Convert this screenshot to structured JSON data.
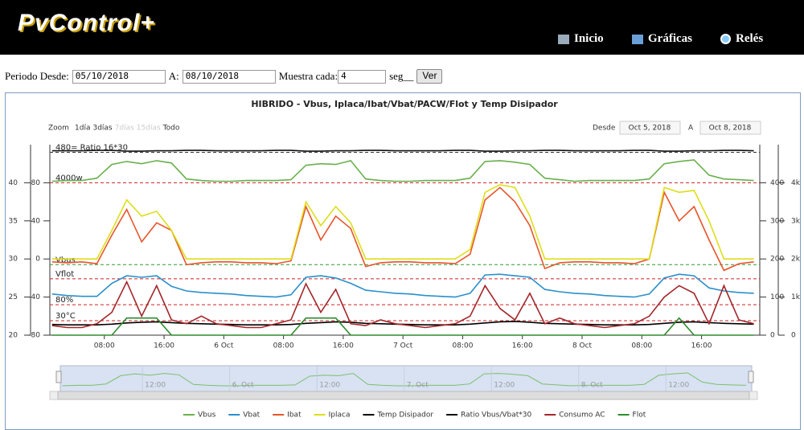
{
  "header": {
    "logo": "PvControl+",
    "nav": [
      "Inicio",
      "Gráficas",
      "Relés"
    ]
  },
  "form": {
    "desde_label": "Periodo Desde:",
    "desde": "05/10/2018",
    "a_label": "A:",
    "a": "08/10/2018",
    "muestra_label": "Muestra cada:",
    "muestra": "4",
    "seg": "seg__",
    "button": "Ver"
  },
  "chart_data": {
    "type": "line",
    "title": "HIBRIDO - Vbus, Iplaca/Ibat/Vbat/PACW/Flot y Temp Disipador",
    "range_selector": {
      "label": "Zoom",
      "buttons": [
        "1día",
        "3días",
        "7días",
        "15días",
        "Todo"
      ],
      "enabled": [
        true,
        true,
        false,
        false,
        true
      ],
      "from_label": "Desde",
      "from": "Oct 5, 2018",
      "to_label": "A",
      "to": "Oct 8, 2018"
    },
    "x": [
      1,
      3,
      5,
      7,
      9,
      11,
      13,
      15,
      17,
      19,
      21,
      23,
      25,
      27,
      29,
      31,
      33,
      35,
      37,
      39,
      41,
      43,
      45,
      47,
      49,
      51,
      53,
      55,
      57,
      59,
      61,
      63,
      65,
      67,
      69,
      71,
      73,
      75,
      77,
      79,
      81,
      83,
      85,
      87,
      89,
      91,
      93,
      95
    ],
    "xlim": [
      0.7,
      95.8
    ],
    "xticks": [
      {
        "value": 8,
        "label": "08:00"
      },
      {
        "value": 16,
        "label": "16:00"
      },
      {
        "value": 24,
        "label": "6 Oct"
      },
      {
        "value": 32,
        "label": "08:00"
      },
      {
        "value": 40,
        "label": "16:00"
      },
      {
        "value": 48,
        "label": "7 Oct"
      },
      {
        "value": 56,
        "label": "08:00"
      },
      {
        "value": 64,
        "label": "16:00"
      },
      {
        "value": 72,
        "label": "8 Oct"
      },
      {
        "value": 80,
        "label": "08:00"
      },
      {
        "value": 88,
        "label": "16:00"
      }
    ],
    "ylim": [
      20,
      45
    ],
    "yticks": [
      20,
      25,
      30,
      35,
      40
    ],
    "y2lim": [
      -80,
      120
    ],
    "y2ticks": [
      -80,
      -40,
      0,
      40,
      80
    ],
    "y3lim": [
      0,
      500
    ],
    "y3ticks": [
      0,
      100,
      200,
      300,
      400
    ],
    "y4lim": [
      0,
      5000
    ],
    "y4ticks": [
      {
        "value": 0,
        "label": "0"
      },
      {
        "value": 1000,
        "label": "1k"
      },
      {
        "value": 2000,
        "label": "2k"
      },
      {
        "value": 3000,
        "label": "3k"
      },
      {
        "value": 4000,
        "label": "4k"
      }
    ],
    "plot_lines": [
      {
        "label": "480= Ratio 16*30",
        "value": 480,
        "axis": "y3",
        "color": "#333333"
      },
      {
        "label": "4000w",
        "value": 4000,
        "axis": "y4",
        "color": "#cc2222"
      },
      {
        "label": "Vbus",
        "value": 185,
        "axis": "y3",
        "color": "#2e9a2e"
      },
      {
        "label": "Vflot",
        "value": 148,
        "axis": "y3",
        "color": "#cc2222"
      },
      {
        "label": "80%",
        "value": 80,
        "axis": "y3",
        "color": "#cc2222"
      },
      {
        "label": "30°C",
        "value": 38,
        "axis": "y3",
        "color": "#cc2222"
      }
    ],
    "series": [
      {
        "name": "Vbus",
        "color": "#6ab04c",
        "axis": "y",
        "values": [
          40.2,
          40.3,
          40.3,
          40.6,
          42.4,
          42.8,
          42.5,
          42.9,
          42.6,
          40.5,
          40.3,
          40.2,
          40.2,
          40.3,
          40.3,
          40.3,
          40.4,
          42.3,
          42.5,
          42.4,
          42.9,
          40.5,
          40.3,
          40.2,
          40.2,
          40.3,
          40.3,
          40.3,
          40.6,
          42.8,
          42.9,
          42.7,
          42.4,
          40.6,
          40.4,
          40.2,
          40.3,
          40.3,
          40.3,
          40.3,
          40.5,
          42.5,
          42.8,
          43.0,
          41.0,
          40.5,
          40.4,
          40.3
        ]
      },
      {
        "name": "Vbat",
        "color": "#2a8fcb",
        "axis": "y",
        "values": [
          25.4,
          25.2,
          25.1,
          25.1,
          26.8,
          27.8,
          27.6,
          27.8,
          26.4,
          25.8,
          25.6,
          25.5,
          25.4,
          25.2,
          25.1,
          25.0,
          25.3,
          27.6,
          27.8,
          27.5,
          26.8,
          25.9,
          25.7,
          25.5,
          25.4,
          25.2,
          25.1,
          25.0,
          25.5,
          27.9,
          28.0,
          27.8,
          27.6,
          26.0,
          25.7,
          25.5,
          25.4,
          25.2,
          25.1,
          25.0,
          25.4,
          27.5,
          28.0,
          27.8,
          26.2,
          25.8,
          25.6,
          25.5
        ]
      },
      {
        "name": "Ibat",
        "color": "#e8542a",
        "axis": "y2",
        "values": [
          -3,
          -4,
          -3,
          -5,
          25,
          52,
          18,
          38,
          30,
          -6,
          -4,
          -3,
          -3,
          -4,
          -4,
          -5,
          -2,
          55,
          20,
          45,
          32,
          -8,
          -4,
          -3,
          -3,
          -4,
          -4,
          -5,
          5,
          62,
          75,
          60,
          35,
          -10,
          -4,
          -3,
          -3,
          -4,
          -4,
          -5,
          0,
          70,
          40,
          55,
          20,
          -12,
          -5,
          -3
        ]
      },
      {
        "name": "Iplaca",
        "color": "#dede1a",
        "axis": "y2",
        "values": [
          0,
          0,
          0,
          0,
          30,
          62,
          45,
          50,
          30,
          0,
          0,
          0,
          0,
          0,
          0,
          0,
          0,
          60,
          35,
          55,
          38,
          0,
          0,
          0,
          0,
          0,
          0,
          0,
          10,
          70,
          78,
          75,
          45,
          0,
          0,
          0,
          0,
          0,
          0,
          0,
          0,
          75,
          70,
          72,
          40,
          0,
          0,
          0
        ]
      },
      {
        "name": "Temp Disipador",
        "color": "#000000",
        "axis": "y3",
        "values": [
          28,
          27,
          27,
          27,
          29,
          32,
          34,
          35,
          33,
          31,
          30,
          29,
          28,
          27,
          27,
          27,
          28,
          31,
          33,
          35,
          34,
          31,
          30,
          29,
          28,
          27,
          27,
          27,
          29,
          32,
          35,
          36,
          34,
          31,
          30,
          29,
          28,
          27,
          27,
          27,
          28,
          31,
          34,
          35,
          33,
          31,
          30,
          29
        ]
      },
      {
        "name": "Ratio Vbus/Vbat*30",
        "color": "#111111",
        "axis": "y3",
        "values": [
          484,
          484,
          484,
          485,
          485,
          483,
          483,
          484,
          484,
          485,
          485,
          484,
          484,
          484,
          484,
          485,
          485,
          483,
          483,
          484,
          484,
          485,
          485,
          484,
          484,
          484,
          484,
          485,
          485,
          483,
          483,
          484,
          484,
          485,
          485,
          484,
          484,
          484,
          484,
          485,
          485,
          483,
          483,
          484,
          484,
          485,
          485,
          484
        ]
      },
      {
        "name": "Consumo AC",
        "color": "#a3262a",
        "axis": "y4",
        "values": [
          250,
          200,
          200,
          300,
          600,
          1400,
          500,
          1300,
          400,
          300,
          500,
          300,
          250,
          200,
          200,
          300,
          400,
          1350,
          600,
          1200,
          300,
          250,
          400,
          300,
          250,
          200,
          250,
          300,
          500,
          1300,
          700,
          400,
          1100,
          300,
          450,
          300,
          250,
          200,
          250,
          300,
          500,
          1000,
          1300,
          1100,
          300,
          1300,
          400,
          300
        ]
      },
      {
        "name": "Flot",
        "color": "#2e8b2e",
        "axis": "y3",
        "values": [
          0,
          0,
          0,
          0,
          0,
          45,
          45,
          45,
          0,
          0,
          0,
          0,
          0,
          0,
          0,
          0,
          0,
          45,
          45,
          45,
          0,
          0,
          0,
          0,
          0,
          0,
          0,
          0,
          0,
          0,
          0,
          0,
          0,
          0,
          0,
          0,
          0,
          0,
          0,
          0,
          0,
          0,
          45,
          0,
          0,
          0,
          0,
          0
        ]
      }
    ],
    "navigator": {
      "xticks": [
        {
          "value": 12,
          "label": "12:00"
        },
        {
          "value": 24,
          "label": "6. Oct"
        },
        {
          "value": 36,
          "label": "12:00"
        },
        {
          "value": 48,
          "label": "7. Oct"
        },
        {
          "value": 60,
          "label": "12:00"
        },
        {
          "value": 72,
          "label": "8. Oct"
        },
        {
          "value": 84,
          "label": "12:00"
        }
      ]
    }
  }
}
